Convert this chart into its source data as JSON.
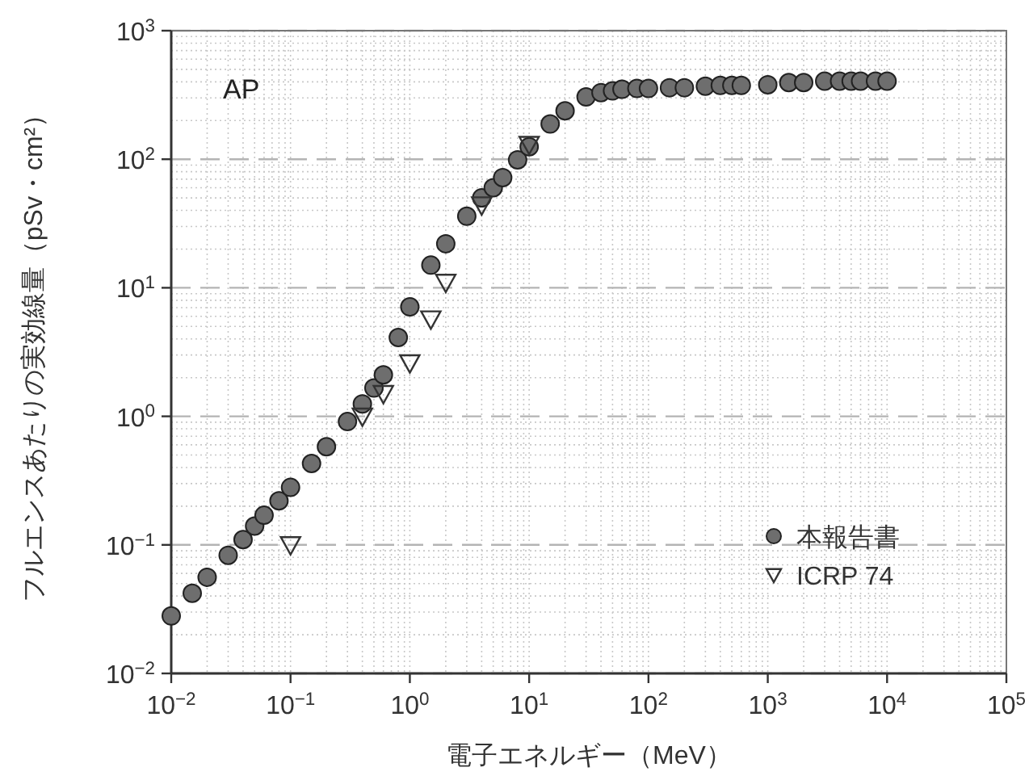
{
  "chart_data": {
    "type": "scatter",
    "xlabel": "電子エネルギー（MeV）",
    "ylabel": "フルエンスあたりの実効線量（pSv・cm²）",
    "annotations": [
      "AP"
    ],
    "log": "xy",
    "grid": true,
    "legend": "bottom right",
    "xlim": [
      0.01,
      100000
    ],
    "ylim": [
      0.01,
      1000
    ],
    "xticks": [
      {
        "value": 0.01,
        "label": "10$^{−2}$"
      },
      {
        "value": 0.1,
        "label": "10$^{−1}$"
      },
      {
        "value": 1,
        "label": "10$^{0}$"
      },
      {
        "value": 10,
        "label": "10$^{1}$"
      },
      {
        "value": 100,
        "label": "10$^{2}$"
      },
      {
        "value": 1000,
        "label": "10$^{3}$"
      },
      {
        "value": 10000,
        "label": "10$^{4}$"
      },
      {
        "value": 100000,
        "label": "10$^{5}$"
      }
    ],
    "yticks": [
      {
        "value": 0.01,
        "label": "10$^{−2}$"
      },
      {
        "value": 0.1,
        "label": "10$^{−1}$"
      },
      {
        "value": 1,
        "label": "10$^{0}$"
      },
      {
        "value": 10,
        "label": "10$^{1}$"
      },
      {
        "value": 100,
        "label": "10$^{2}$"
      },
      {
        "value": 1000,
        "label": "10$^{3}$"
      }
    ],
    "series": [
      {
        "name": "本報告書",
        "color": "#6e6e6e",
        "marker": "circle",
        "x": [
          0.01,
          0.015,
          0.02,
          0.03,
          0.04,
          0.05,
          0.06,
          0.08,
          0.1,
          0.15,
          0.2,
          0.3,
          0.4,
          0.5,
          0.6,
          0.8,
          1,
          1.5,
          2,
          3,
          4,
          5,
          6,
          8,
          10,
          15,
          20,
          30,
          40,
          50,
          60,
          80,
          100,
          150,
          200,
          300,
          400,
          500,
          600,
          1000,
          1500,
          2000,
          3000,
          4000,
          5000,
          6000,
          8000,
          10000
        ],
        "values": [
          0.028,
          0.042,
          0.056,
          0.083,
          0.11,
          0.14,
          0.17,
          0.22,
          0.28,
          0.43,
          0.58,
          0.91,
          1.25,
          1.66,
          2.1,
          4.1,
          7.1,
          15,
          22,
          36,
          50,
          60,
          72,
          99,
          125,
          188,
          238,
          305,
          330,
          340,
          350,
          355,
          355,
          360,
          360,
          370,
          375,
          375,
          375,
          380,
          395,
          395,
          405,
          405,
          405,
          405,
          405,
          405
        ]
      },
      {
        "name": "ICRP 74",
        "color": "#333333",
        "marker": "triangle",
        "x": [
          0.1,
          0.4,
          0.6,
          1,
          1.5,
          2,
          4,
          10
        ],
        "values": [
          0.1,
          1.0,
          1.5,
          2.6,
          5.7,
          11,
          44,
          130
        ]
      }
    ]
  }
}
